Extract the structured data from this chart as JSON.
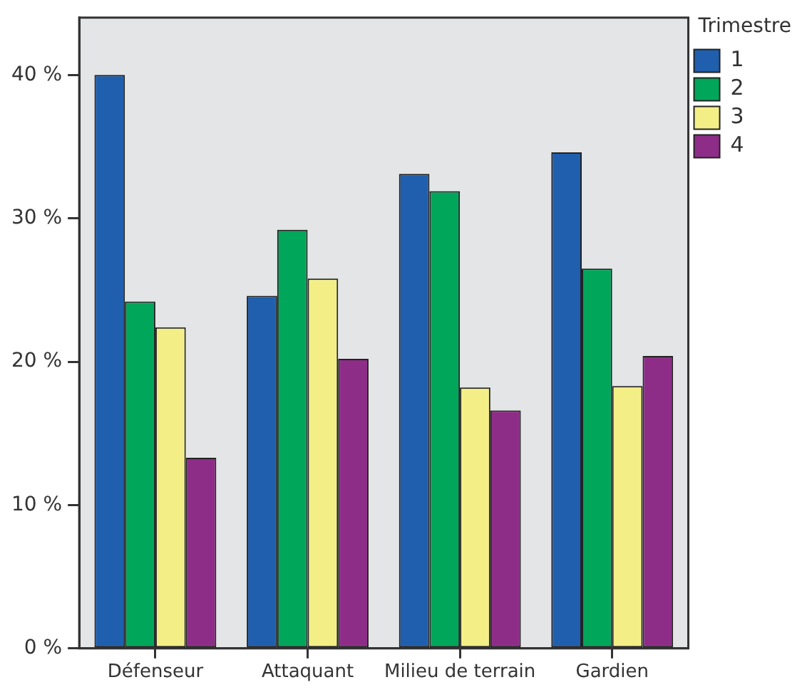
{
  "chart_data": {
    "type": "bar",
    "categories": [
      "Défenseur",
      "Attaquant",
      "Milieu de terrain",
      "Gardien"
    ],
    "legend_title": "Trimestre",
    "series": [
      {
        "name": "1",
        "color": "#1f5fad",
        "values": [
          40.0,
          24.6,
          33.1,
          34.6
        ]
      },
      {
        "name": "2",
        "color": "#00a65a",
        "values": [
          24.2,
          29.2,
          31.9,
          26.5
        ]
      },
      {
        "name": "3",
        "color": "#f3ef86",
        "values": [
          22.4,
          25.8,
          18.2,
          18.3
        ]
      },
      {
        "name": "4",
        "color": "#8e2d88",
        "values": [
          13.3,
          20.2,
          16.6,
          20.4
        ]
      }
    ],
    "ylim": [
      0,
      44
    ],
    "yticks": [
      {
        "value": 0,
        "label": "0 %"
      },
      {
        "value": 10,
        "label": "10 %"
      },
      {
        "value": 20,
        "label": "20 %"
      },
      {
        "value": 30,
        "label": "30 %"
      },
      {
        "value": 40,
        "label": "40 %"
      }
    ],
    "grid": false,
    "legend": "top right"
  }
}
